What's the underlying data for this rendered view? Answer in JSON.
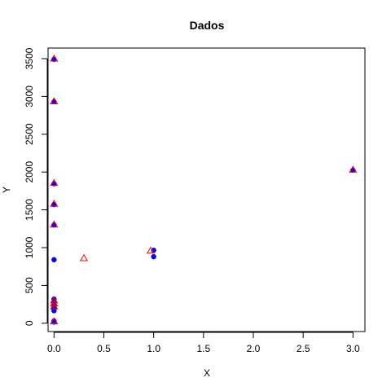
{
  "chart_data": {
    "type": "scatter",
    "title": "Dados",
    "xlabel": "X",
    "ylabel": "Y",
    "xlim": [
      -0.06,
      3.12
    ],
    "ylim": [
      -110,
      3640
    ],
    "x_ticks": [
      0,
      0.5,
      1,
      1.5,
      2,
      2.5,
      3
    ],
    "x_tick_labels": [
      "0.0",
      "0.5",
      "1.0",
      "1.5",
      "2.0",
      "2.5",
      "3.0"
    ],
    "y_ticks": [
      0,
      500,
      1000,
      1500,
      2000,
      2500,
      3000,
      3500
    ],
    "y_tick_labels": [
      "0",
      "500",
      "1000",
      "1500",
      "2000",
      "2500",
      "3000",
      "3500"
    ],
    "grid": false,
    "series": [
      {
        "marker": "filled-circle",
        "color": "#0000FF",
        "points": [
          {
            "x": 0,
            "y": 3490
          },
          {
            "x": 0,
            "y": 2930
          },
          {
            "x": 0,
            "y": 1845
          },
          {
            "x": 0,
            "y": 1570
          },
          {
            "x": 0,
            "y": 1300
          },
          {
            "x": 0,
            "y": 840
          },
          {
            "x": 0,
            "y": 320
          },
          {
            "x": 0,
            "y": 280
          },
          {
            "x": 0,
            "y": 240
          },
          {
            "x": 0,
            "y": 200
          },
          {
            "x": 0,
            "y": 165
          },
          {
            "x": 0,
            "y": 30
          },
          {
            "x": 0,
            "y": 15
          },
          {
            "x": 1.0,
            "y": 965
          },
          {
            "x": 1.0,
            "y": 880
          },
          {
            "x": 3.0,
            "y": 2025
          }
        ]
      },
      {
        "marker": "open-triangle",
        "color": "#FF0000",
        "points": [
          {
            "x": 0,
            "y": 3500
          },
          {
            "x": 0,
            "y": 2935
          },
          {
            "x": 0,
            "y": 1855
          },
          {
            "x": 0,
            "y": 1580
          },
          {
            "x": 0,
            "y": 1305
          },
          {
            "x": 0,
            "y": 300
          },
          {
            "x": 0,
            "y": 260
          },
          {
            "x": 0,
            "y": 220
          },
          {
            "x": 0,
            "y": 25
          },
          {
            "x": 0.3,
            "y": 860
          },
          {
            "x": 0.97,
            "y": 960
          },
          {
            "x": 3.0,
            "y": 2030
          }
        ]
      }
    ]
  }
}
